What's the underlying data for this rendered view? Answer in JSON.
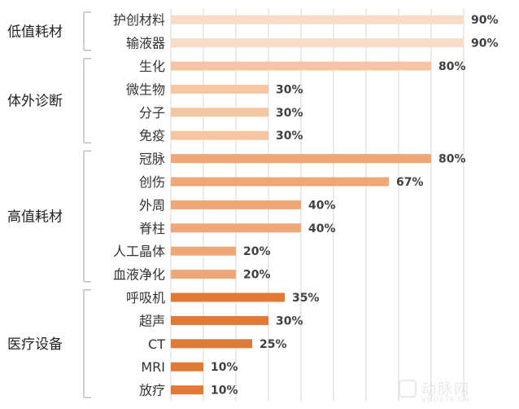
{
  "chart_data": {
    "type": "bar",
    "orientation": "horizontal",
    "grid": true,
    "xlim": [
      0,
      90
    ],
    "groups": [
      {
        "name": "低值耗材",
        "color": "#f9dcc6",
        "categories": [
          "护创材料",
          "输液器"
        ]
      },
      {
        "name": "体外诊断",
        "color": "#f6c6a2",
        "categories": [
          "生化",
          "微生物",
          "分子",
          "免疫"
        ]
      },
      {
        "name": "高值耗材",
        "color": "#efa777",
        "categories": [
          "冠脉",
          "创伤",
          "外周",
          "脊柱",
          "人工晶体",
          "血液净化"
        ]
      },
      {
        "name": "医疗设备",
        "color": "#e07a35",
        "categories": [
          "呼吸机",
          "超声",
          "CT",
          "MRI",
          "放疗"
        ]
      }
    ],
    "categories": [
      "护创材料",
      "输液器",
      "生化",
      "微生物",
      "分子",
      "免疫",
      "冠脉",
      "创伤",
      "外周",
      "脊柱",
      "人工晶体",
      "血液净化",
      "呼吸机",
      "超声",
      "CT",
      "MRI",
      "放疗"
    ],
    "values": [
      90,
      90,
      80,
      30,
      30,
      30,
      80,
      67,
      40,
      40,
      20,
      20,
      35,
      30,
      25,
      10,
      10
    ],
    "data_labels": [
      "90%",
      "90%",
      "80%",
      "30%",
      "30%",
      "30%",
      "80%",
      "67%",
      "40%",
      "40%",
      "20%",
      "20%",
      "35%",
      "30%",
      "25%",
      "10%",
      "10%"
    ]
  },
  "watermark": {
    "name": "动脉网",
    "url": "VBDATA.CN"
  }
}
